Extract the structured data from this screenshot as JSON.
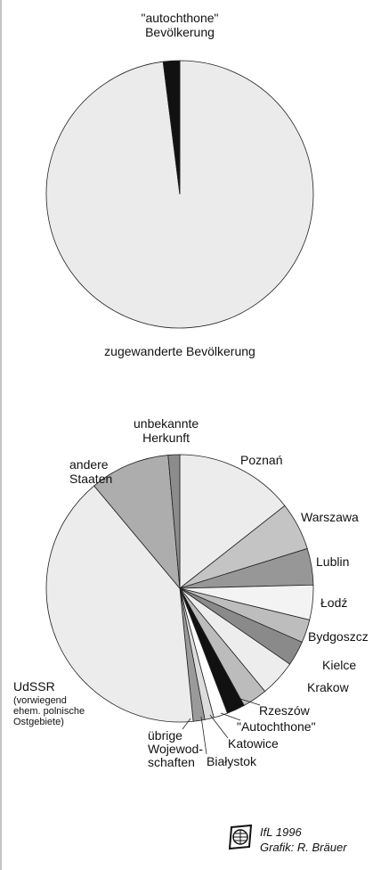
{
  "chart_data": [
    {
      "type": "pie",
      "categories": [
        "zugewanderte Bevölkerung",
        "\"autochthone\"\nBevölkerung"
      ],
      "values": [
        98,
        2
      ],
      "colors": [
        "#ebebeb",
        "#111111"
      ]
    },
    {
      "type": "pie",
      "categories": [
        "Poznań",
        "Warszawa",
        "Lublin",
        "Łodź",
        "Bydgoszcz",
        "Kielce",
        "Krakow",
        "Rzeszów",
        "\"Autochthone\"",
        "Katowice",
        "Białystok",
        "übrige\nWojewod-\nschaften",
        "UdSSR",
        "andere\nStaaten",
        "unbekannte\nHerkunft"
      ],
      "values": [
        14.4,
        5.8,
        4.4,
        4.2,
        2.8,
        3.0,
        4.4,
        3.0,
        2.2,
        1.7,
        1.1,
        1.4,
        40.5,
        9.7,
        1.4
      ],
      "colors": [
        "#ececec",
        "#c4c4c4",
        "#979797",
        "#f3f3f3",
        "#bdbdbd",
        "#8a8a8a",
        "#ededed",
        "#bcbcbc",
        "#111111",
        "#ffffff",
        "#dcdcdc",
        "#9a9a9a",
        "#ececec",
        "#adadad",
        "#8c8c8c"
      ],
      "annotation": "(vorwiegend\nehem. polnische\nOstgebiete)"
    }
  ],
  "credits": {
    "line1": "IfL 1996",
    "line2": "Grafik: R. Bräuer"
  }
}
